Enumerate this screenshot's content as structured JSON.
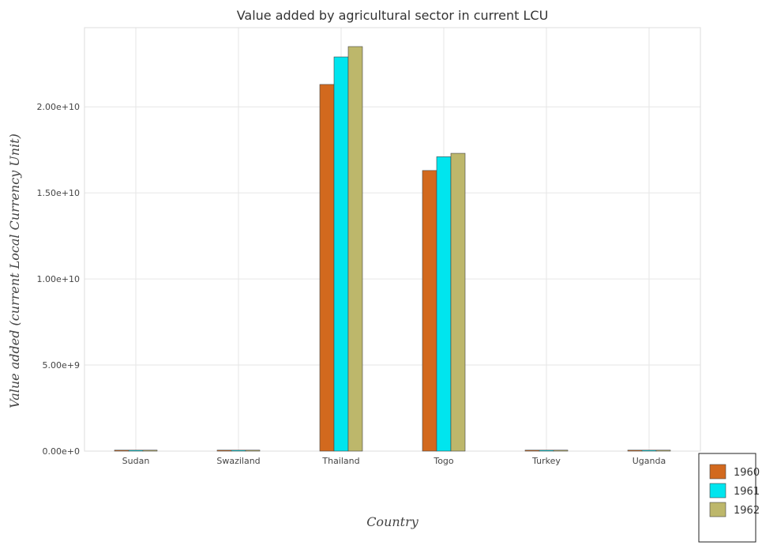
{
  "chart_data": {
    "type": "bar",
    "title": "Value added by agricultural sector in current LCU",
    "xlabel": "Country",
    "ylabel": "Value added (current Local Currency Unit)",
    "categories": [
      "Sudan",
      "Swaziland",
      "Thailand",
      "Togo",
      "Turkey",
      "Uganda"
    ],
    "series": [
      {
        "name": "1960",
        "color": "#d2691e",
        "values": [
          3000000,
          10000000,
          21300000000,
          16300000000,
          4500000,
          18000000
        ]
      },
      {
        "name": "1961",
        "color": "#00e5ee",
        "values": [
          3200000,
          11000000,
          22900000000,
          17100000000,
          4800000,
          19000000
        ]
      },
      {
        "name": "1962",
        "color": "#bdb76b",
        "values": [
          3300000,
          12000000,
          23500000000,
          17300000000,
          5000000,
          20000000
        ]
      }
    ],
    "ylim": [
      0,
      24600000000
    ],
    "yticks": [
      0,
      5000000000,
      10000000000,
      15000000000,
      20000000000
    ],
    "ytick_labels": [
      "0.00e+0",
      "5.00e+9",
      "1.00e+10",
      "1.50e+10",
      "2.00e+10"
    ],
    "grid": true,
    "legend_position": "bottom-right"
  }
}
